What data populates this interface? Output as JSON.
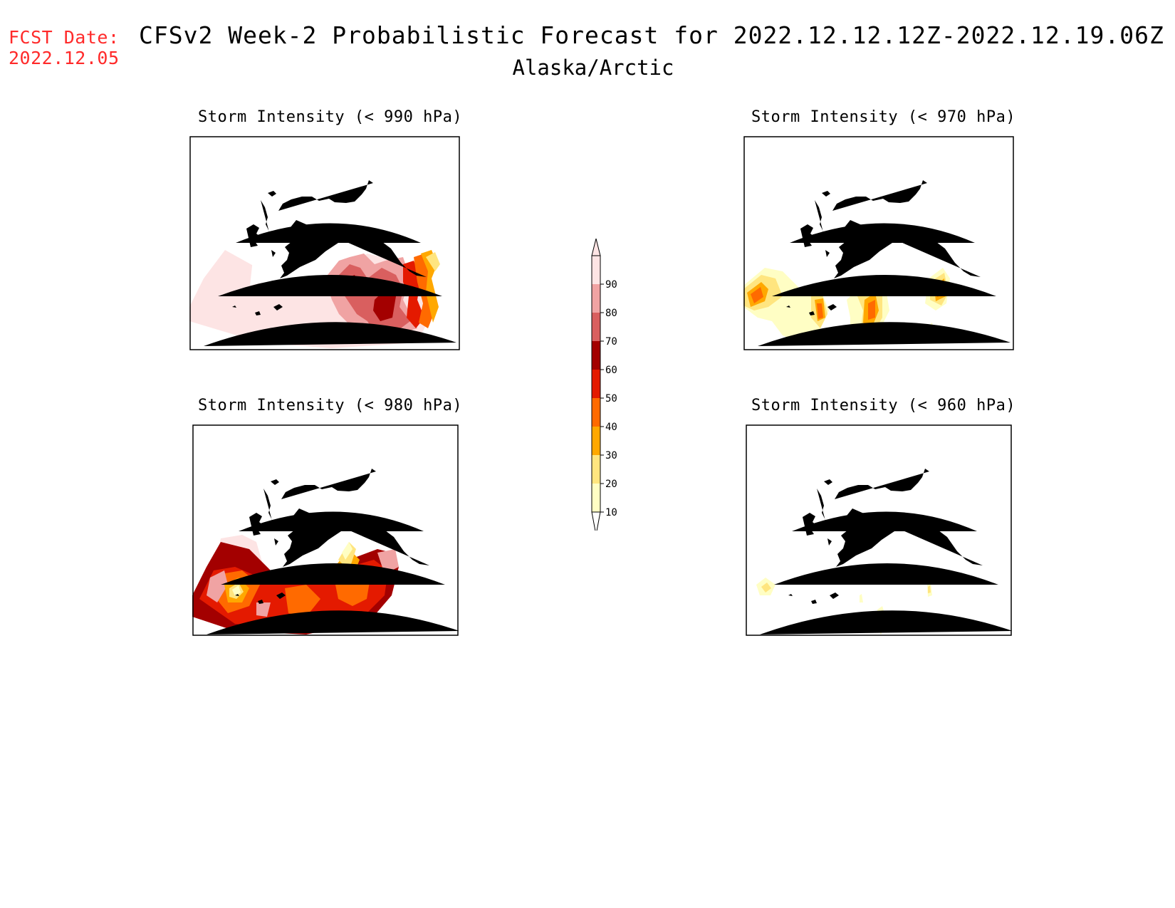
{
  "header": {
    "fcst_label": "FCST Date:",
    "fcst_date": "2022.12.05",
    "title": "CFSv2 Week-2 Probabilistic Forecast for 2022.12.12.12Z-2022.12.19.06Z",
    "subtitle": "Alaska/Arctic"
  },
  "panels": [
    {
      "id": "p990",
      "title": "Storm Intensity (< 990 hPa)"
    },
    {
      "id": "p970",
      "title": "Storm Intensity (< 970 hPa)"
    },
    {
      "id": "p980",
      "title": "Storm Intensity (< 980 hPa)"
    },
    {
      "id": "p960",
      "title": "Storm Intensity (< 960 hPa)"
    }
  ],
  "colorbar": {
    "levels": [
      "10",
      "20",
      "30",
      "40",
      "50",
      "60",
      "70",
      "80",
      "90"
    ],
    "colors": [
      "#fffec4",
      "#ffe57f",
      "#ffa800",
      "#ff6a00",
      "#e41a00",
      "#a30000",
      "#d95f5f",
      "#f0a3a3",
      "#fde4e4"
    ]
  }
}
